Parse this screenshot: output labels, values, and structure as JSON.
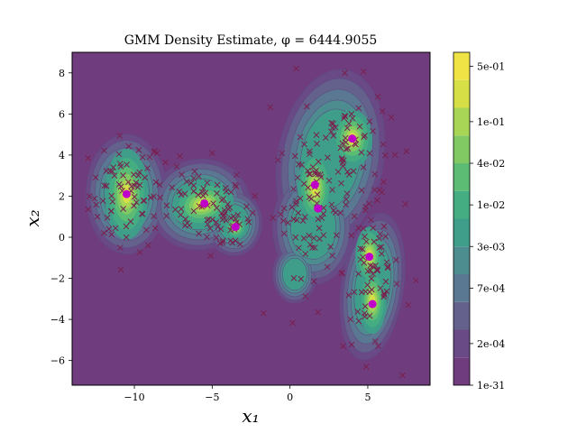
{
  "chart_data": {
    "type": "contour",
    "title": "GMM Density Estimate, φ = 6444.9055",
    "xlabel": "x₁",
    "ylabel": "x₂",
    "xlim": [
      -14,
      9
    ],
    "ylim": [
      -7.2,
      9
    ],
    "xticks": [
      -10,
      -5,
      0,
      5
    ],
    "yticks": [
      -6,
      -4,
      -2,
      0,
      2,
      4,
      6,
      8
    ],
    "grid": false,
    "colorbar": {
      "position": "right",
      "ticks": [
        "1e-31",
        "2e-04",
        "7e-04",
        "3e-03",
        "1e-02",
        "4e-02",
        "1e-01",
        "5e-01"
      ],
      "levels": [
        "#6f3d7d",
        "#6a4a86",
        "#64628d",
        "#5a7891",
        "#4d8c8f",
        "#3f9e8a",
        "#45ad82",
        "#5cbc74",
        "#80c963",
        "#a8d556",
        "#d6e046",
        "#f0e346"
      ]
    },
    "component_means": [
      {
        "x": -10.5,
        "y": 2.1
      },
      {
        "x": -5.5,
        "y": 1.65
      },
      {
        "x": -3.5,
        "y": 0.5
      },
      {
        "x": 1.6,
        "y": 2.55
      },
      {
        "x": 1.8,
        "y": 1.4
      },
      {
        "x": 4.0,
        "y": 4.8
      },
      {
        "x": 5.1,
        "y": -0.95
      },
      {
        "x": 5.3,
        "y": -3.25
      }
    ],
    "marker_colors": {
      "mean": "#c000c8",
      "sample": "#7a1f4e",
      "background": "#6f3d7d"
    }
  }
}
